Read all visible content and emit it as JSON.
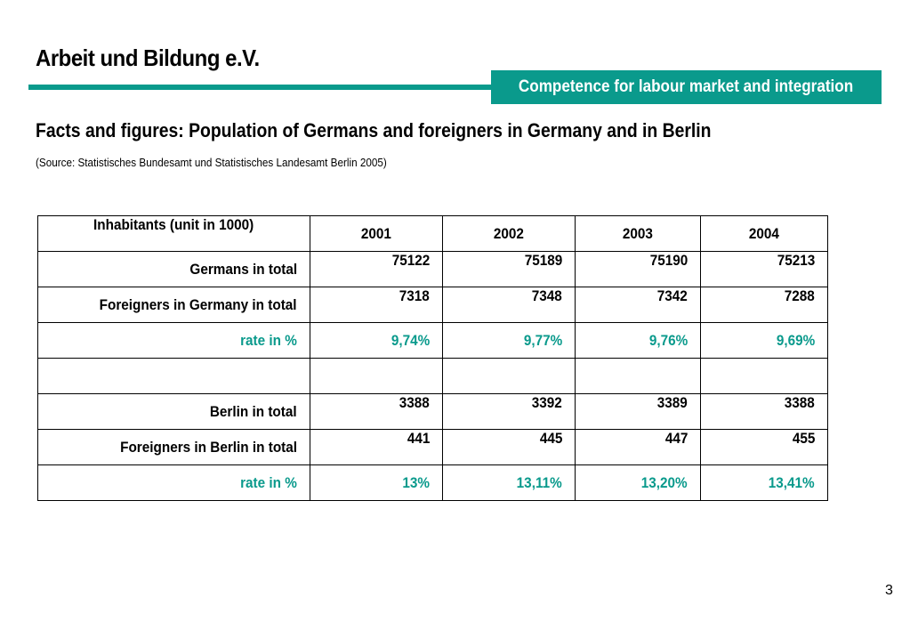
{
  "header": {
    "org_title": "Arbeit und Bildung e.V.",
    "tagline": "Competence for labour market and integration",
    "accent_color": "#0a9a8c"
  },
  "main": {
    "heading": "Facts and figures: Population of Germans and foreigners in Germany and in Berlin",
    "source": "(Source: Statistisches Bundesamt und Statistisches Landesamt Berlin 2005)"
  },
  "table": {
    "header_label": "Inhabitants (unit in 1000)",
    "years": [
      "2001",
      "2002",
      "2003",
      "2004"
    ],
    "rows": [
      {
        "label": "Germans in total",
        "values": [
          "75122",
          "75189",
          "75190",
          "75213"
        ]
      },
      {
        "label": "Foreigners in Germany in total",
        "values": [
          "7318",
          "7348",
          "7342",
          "7288"
        ]
      },
      {
        "label": "rate in %",
        "values": [
          "9,74%",
          "9,77%",
          "9,76%",
          "9,69%"
        ]
      },
      {
        "label": "",
        "values": [
          "",
          "",
          "",
          ""
        ]
      },
      {
        "label": "Berlin in total",
        "values": [
          "3388",
          "3392",
          "3389",
          "3388"
        ]
      },
      {
        "label": "Foreigners in Berlin in total",
        "values": [
          "441",
          "445",
          "447",
          "455"
        ]
      },
      {
        "label": "rate in %",
        "values": [
          "13%",
          "13,11%",
          "13,20%",
          "13,41%"
        ]
      }
    ]
  },
  "footer": {
    "page_number": "3"
  }
}
